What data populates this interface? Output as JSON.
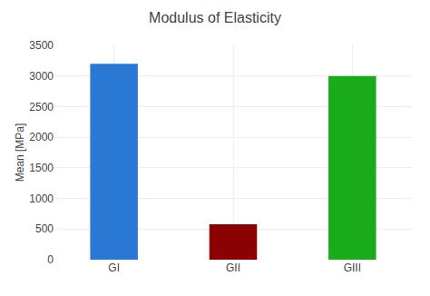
{
  "chart_data": {
    "type": "bar",
    "title": "Modulus of Elasticity",
    "categories": [
      "GI",
      "GII",
      "GIII"
    ],
    "values": [
      3200,
      580,
      3000
    ],
    "colors": [
      "#2979d4",
      "#8b0000",
      "#1aab1a"
    ],
    "ylabel": "Mean [MPa]",
    "ylim": [
      0,
      3500
    ],
    "yticks": [
      0,
      500,
      1000,
      1500,
      2000,
      2500,
      3000,
      3500
    ],
    "grid": true
  }
}
